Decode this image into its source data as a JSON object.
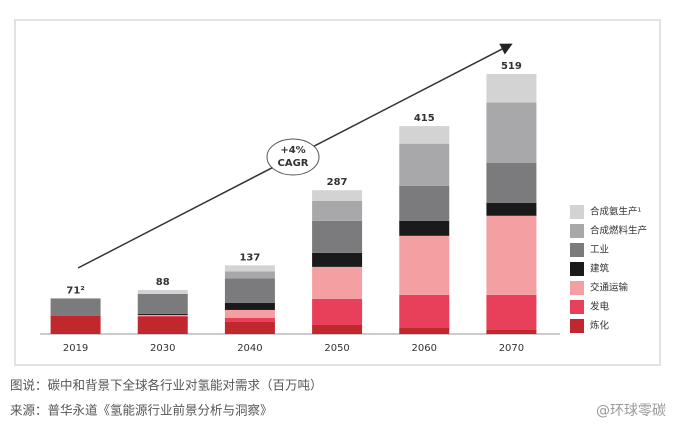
{
  "chart_data": {
    "type": "stacked-bar",
    "categories": [
      "2019",
      "2030",
      "2040",
      "2050",
      "2060",
      "2070"
    ],
    "series": [
      {
        "name": "炼化",
        "color": "#c0282d",
        "values": [
          36,
          34,
          24,
          18,
          12,
          8
        ]
      },
      {
        "name": "发电",
        "color": "#e8405a",
        "values": [
          0,
          2,
          8,
          52,
          66,
          70
        ]
      },
      {
        "name": "交通运输",
        "color": "#f4a0a3",
        "values": [
          0,
          2,
          16,
          64,
          118,
          158
        ]
      },
      {
        "name": "建筑",
        "color": "#1a1a1a",
        "values": [
          0,
          2,
          14,
          28,
          30,
          26
        ]
      },
      {
        "name": "工业",
        "color": "#7b7b7d",
        "values": [
          35,
          40,
          49,
          64,
          70,
          80
        ]
      },
      {
        "name": "合成燃料生产",
        "color": "#a8a8aa",
        "values": [
          0,
          0,
          14,
          40,
          84,
          120
        ]
      },
      {
        "name": "合成氨生产¹",
        "color": "#d3d3d3",
        "values": [
          0,
          8,
          12,
          21,
          35,
          57
        ]
      }
    ],
    "totals": {
      "values": [
        71,
        88,
        137,
        287,
        415,
        519
      ],
      "value_labels": [
        "71²",
        "88",
        "137",
        "287",
        "415",
        "519"
      ]
    },
    "annotation": {
      "line1": "+4%",
      "line2": "CAGR"
    }
  },
  "caption": {
    "line1": "图说：碳中和背景下全球各行业对氢能对需求（百万吨）",
    "line2": "来源：普华永道《氢能源行业前景分析与洞察》",
    "watermark": "@环球零碳"
  }
}
